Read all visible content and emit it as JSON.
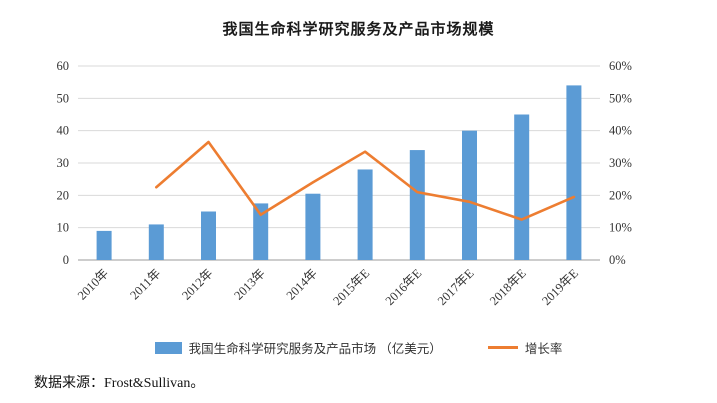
{
  "chart_data": {
    "type": "bar",
    "title": "我国生命科学研究服务及产品市场规模",
    "categories": [
      "2010年",
      "2011年",
      "2012年",
      "2013年",
      "2014年",
      "2015年E",
      "2016年E",
      "2017年E",
      "2018年E",
      "2019年E"
    ],
    "series": [
      {
        "name": "我国生命科学研究服务及产品市场 （亿美元）",
        "type": "bar",
        "axis": "left",
        "color": "#5B9BD5",
        "values": [
          9,
          11,
          15,
          17.5,
          20.5,
          28,
          34,
          40,
          45,
          54
        ]
      },
      {
        "name": "增长率",
        "type": "line",
        "axis": "right",
        "color": "#ED7D31",
        "values": [
          null,
          22.5,
          36.5,
          14,
          24,
          33.5,
          21,
          18,
          12.5,
          19.5
        ]
      }
    ],
    "left_axis": {
      "min": 0,
      "max": 60,
      "step": 10,
      "tick_labels": [
        "0",
        "10",
        "20",
        "30",
        "40",
        "50",
        "60"
      ]
    },
    "right_axis": {
      "min": 0,
      "max": 60,
      "step": 10,
      "tick_labels": [
        "0%",
        "10%",
        "20%",
        "30%",
        "40%",
        "50%",
        "60%"
      ]
    },
    "grid": true,
    "legend_position": "bottom"
  },
  "source": "数据来源：Frost&Sullivan。"
}
